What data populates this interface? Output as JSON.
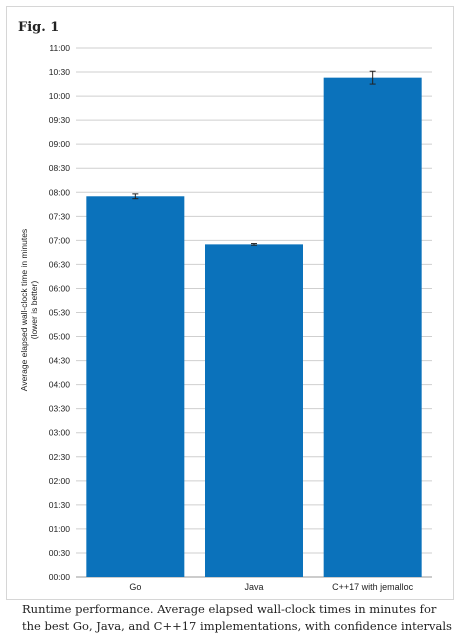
{
  "figure": {
    "label": "Fig. 1",
    "caption": "Runtime performance. Average elapsed wall-clock times in minutes for the best Go, Java, and C++17 implementations, with confidence intervals"
  },
  "chart_data": {
    "type": "bar",
    "title": "",
    "xlabel": "",
    "ylabel": "Average elapsed wall-clock time in minutes",
    "ylabel_sub": "(lower is better)",
    "ylim": [
      0,
      660
    ],
    "y_ticks": [
      {
        "value": 0,
        "label": "00:00"
      },
      {
        "value": 30,
        "label": "00:30"
      },
      {
        "value": 60,
        "label": "01:00"
      },
      {
        "value": 90,
        "label": "01:30"
      },
      {
        "value": 120,
        "label": "02:00"
      },
      {
        "value": 150,
        "label": "02:30"
      },
      {
        "value": 180,
        "label": "03:00"
      },
      {
        "value": 210,
        "label": "03:30"
      },
      {
        "value": 240,
        "label": "04:00"
      },
      {
        "value": 270,
        "label": "04:30"
      },
      {
        "value": 300,
        "label": "05:00"
      },
      {
        "value": 330,
        "label": "05:30"
      },
      {
        "value": 360,
        "label": "06:00"
      },
      {
        "value": 390,
        "label": "06:30"
      },
      {
        "value": 420,
        "label": "07:00"
      },
      {
        "value": 450,
        "label": "07:30"
      },
      {
        "value": 480,
        "label": "08:00"
      },
      {
        "value": 510,
        "label": "08:30"
      },
      {
        "value": 540,
        "label": "09:00"
      },
      {
        "value": 570,
        "label": "09:30"
      },
      {
        "value": 600,
        "label": "10:00"
      },
      {
        "value": 630,
        "label": "10:30"
      },
      {
        "value": 660,
        "label": "11:00"
      }
    ],
    "categories": [
      "Go",
      "Java",
      "C++17 with jemalloc"
    ],
    "values": [
      475,
      415,
      623
    ],
    "error_bars": [
      {
        "low": 472,
        "high": 478
      },
      {
        "low": 414,
        "high": 416
      },
      {
        "low": 615,
        "high": 631
      }
    ],
    "bar_color": "#0b72bb",
    "grid": true,
    "legend": "none"
  }
}
